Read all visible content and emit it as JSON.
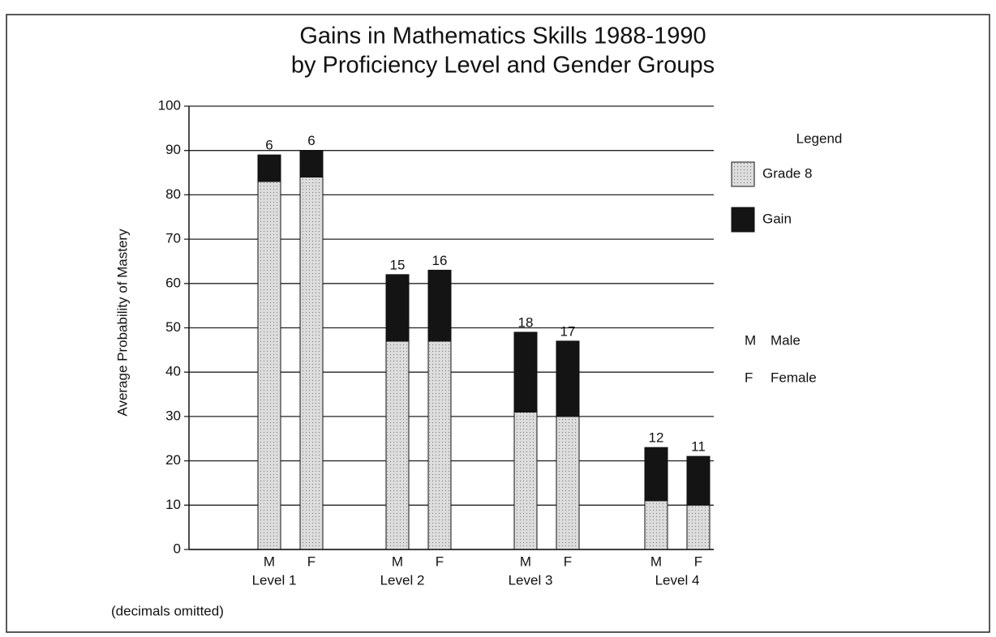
{
  "chart_data": {
    "type": "stacked_bar",
    "title": "Gains in Mathematics Skills 1988-1990",
    "subtitle": "by Proficiency Level and Gender Groups",
    "y_label": "Average Probability of Mastery",
    "categories": [
      "M",
      "F",
      "M",
      "F",
      "M",
      "F",
      "M",
      "F"
    ],
    "groups": [
      "Level 1",
      "Level 2",
      "Level 3",
      "Level 4"
    ],
    "series": [
      {
        "name": "Grade 8",
        "color": "#dcdcdc",
        "values": [
          83,
          84,
          47,
          47,
          31,
          30,
          11,
          10
        ]
      },
      {
        "name": "Gain",
        "color": "#141414",
        "values": [
          6,
          6,
          15,
          16,
          18,
          17,
          12,
          11
        ]
      }
    ],
    "legend_title": "Legend",
    "legend_position": "right",
    "key": [
      {
        "code": "M",
        "meaning": "Male"
      },
      {
        "code": "F",
        "meaning": "Female"
      }
    ],
    "note": "(decimals omitted)",
    "ylim": [
      0,
      100
    ],
    "yticks": [
      0,
      10,
      20,
      30,
      40,
      50,
      60,
      70,
      80,
      90,
      100
    ],
    "grid": true
  }
}
